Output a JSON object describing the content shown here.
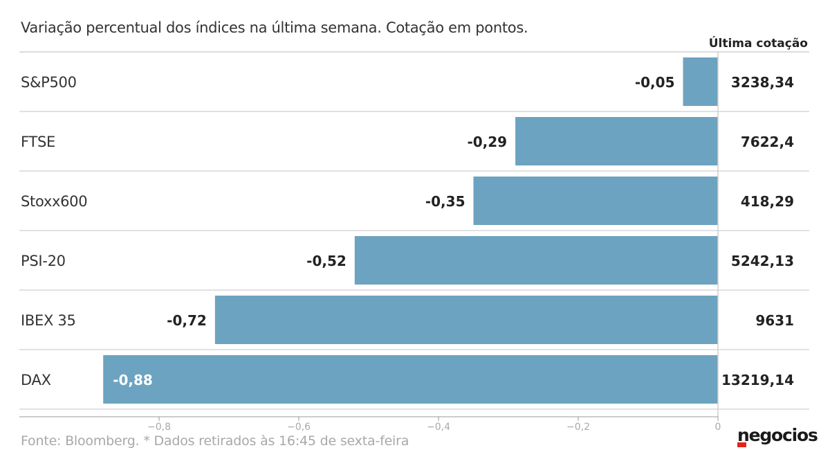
{
  "subtitle": "Variação percentual dos índices na última semana. Cotação em pontos.",
  "source": "Fonte: Bloomberg.  * Dados retirados às 16:45 de sexta-feira",
  "logo": "negocios",
  "colors": {
    "bar": "#6ca3c0",
    "grid": "#cfcfcf",
    "text": "#333333",
    "muted": "#a8a8a8",
    "brand_red": "#e1251b"
  },
  "chart_data": {
    "type": "bar",
    "orientation": "horizontal",
    "categories": [
      "S&P500",
      "FTSE",
      "Stoxx600",
      "PSI-20",
      "IBEX 35",
      "DAX"
    ],
    "values": [
      -0.05,
      -0.29,
      -0.35,
      -0.52,
      -0.72,
      -0.88
    ],
    "value_labels": [
      "-0,05",
      "-0,29",
      "-0,35",
      "-0,52",
      "-0,72",
      "-0,88"
    ],
    "last_quote_header": "Última cotação",
    "last_quotes": [
      "3238,34",
      "7622,4",
      "418,29",
      "5242,13",
      "9631",
      "13219,14"
    ],
    "xlim": [
      -0.97,
      0
    ],
    "x_ticks": [
      -0.8,
      -0.6,
      -0.4,
      -0.2,
      0
    ],
    "x_tick_labels": [
      "−0,8",
      "−0,6",
      "−0,4",
      "−0,2",
      "0"
    ],
    "grid": false
  }
}
